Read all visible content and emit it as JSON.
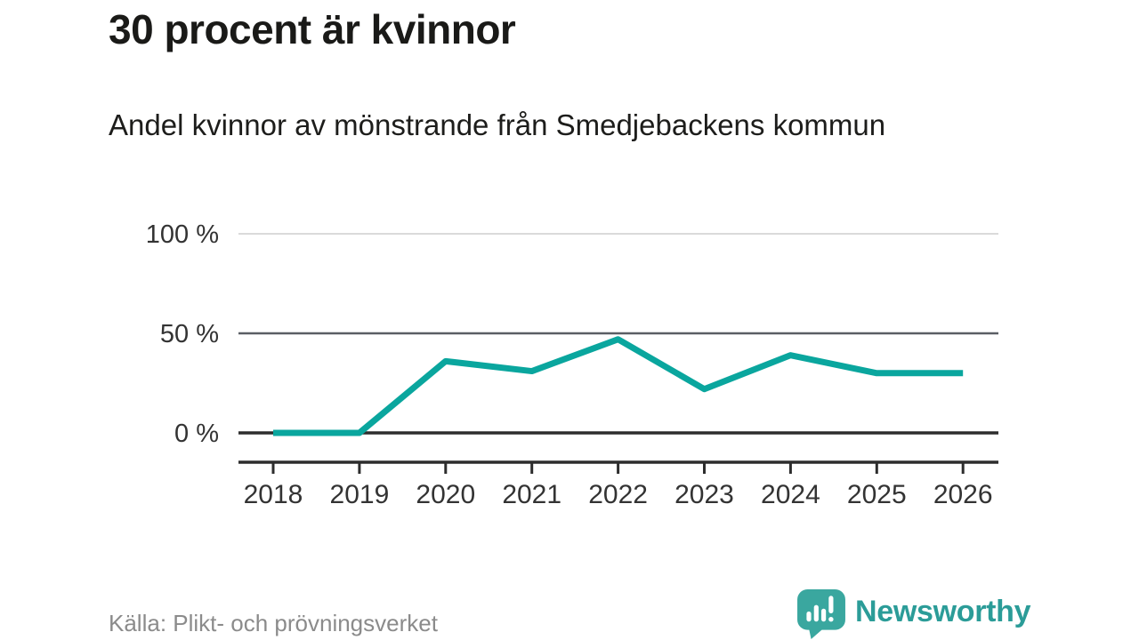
{
  "header": {
    "title": "30 procent är kvinnor",
    "subtitle": "Andel kvinnor av mönstrande från Smedjebackens kommun"
  },
  "footer": {
    "source": "Källa: Plikt- och prövningsverket",
    "brand": "Newsworthy"
  },
  "colors": {
    "line": "#0aa69e",
    "grid_light": "#dadada",
    "grid_mid": "#5a5e64",
    "grid_strong": "#2d2d2d",
    "axis_text": "#333333",
    "logo_bubble": "#3aa79f",
    "logo_text": "#2b9c98"
  },
  "chart_data": {
    "type": "line",
    "title": "30 procent är kvinnor",
    "subtitle": "Andel kvinnor av mönstrande från Smedjebackens kommun",
    "x": [
      2018,
      2019,
      2020,
      2021,
      2022,
      2023,
      2024,
      2025,
      2026
    ],
    "series": [
      {
        "name": "Andel kvinnor av mönstrande",
        "values": [
          0,
          0,
          36,
          31,
          47,
          22,
          39,
          30,
          30
        ],
        "unit": "%",
        "color": "#0aa69e"
      }
    ],
    "xlabel": "",
    "ylabel": "",
    "ylim": [
      0,
      100
    ],
    "yticks": [
      {
        "value": 0,
        "label": "0 %",
        "emphasis": "strong"
      },
      {
        "value": 50,
        "label": "50 %",
        "emphasis": "mid"
      },
      {
        "value": 100,
        "label": "100 %",
        "emphasis": "light"
      }
    ],
    "grid": "horizontal",
    "legend": "none",
    "source": "Källa: Plikt- och prövningsverket"
  }
}
